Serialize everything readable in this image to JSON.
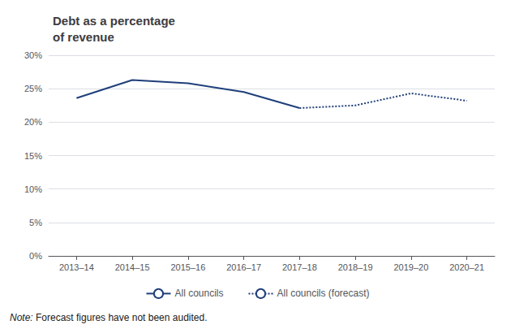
{
  "chart_data": {
    "type": "line",
    "title": "Debt as a percentage\nof revenue",
    "categories": [
      "2013–14",
      "2014–15",
      "2015–16",
      "2016–17",
      "2017–18",
      "2018–19",
      "2019–20",
      "2020–21"
    ],
    "series": [
      {
        "name": "All councils",
        "color": "#1F3F7A",
        "line_style": "solid",
        "values": [
          0.236,
          0.263,
          0.258,
          0.245,
          0.221,
          null,
          null,
          null
        ]
      },
      {
        "name": "All councils (forecast)",
        "color": "#1F3F7A",
        "line_style": "dotted",
        "values": [
          null,
          null,
          null,
          null,
          0.221,
          0.225,
          0.243,
          0.232
        ]
      }
    ],
    "ylim": [
      0,
      0.3
    ],
    "yticks": [
      {
        "value": 0,
        "label": "0%"
      },
      {
        "value": 0.05,
        "label": "5%"
      },
      {
        "value": 0.1,
        "label": "10%"
      },
      {
        "value": 0.15,
        "label": "15%"
      },
      {
        "value": 0.2,
        "label": "20%"
      },
      {
        "value": 0.25,
        "label": "25%"
      },
      {
        "value": 0.3,
        "label": "30%"
      }
    ],
    "grid": true,
    "legend": "bottom",
    "annotations": [
      "Note:",
      "Forecast figures have not been audited."
    ]
  }
}
